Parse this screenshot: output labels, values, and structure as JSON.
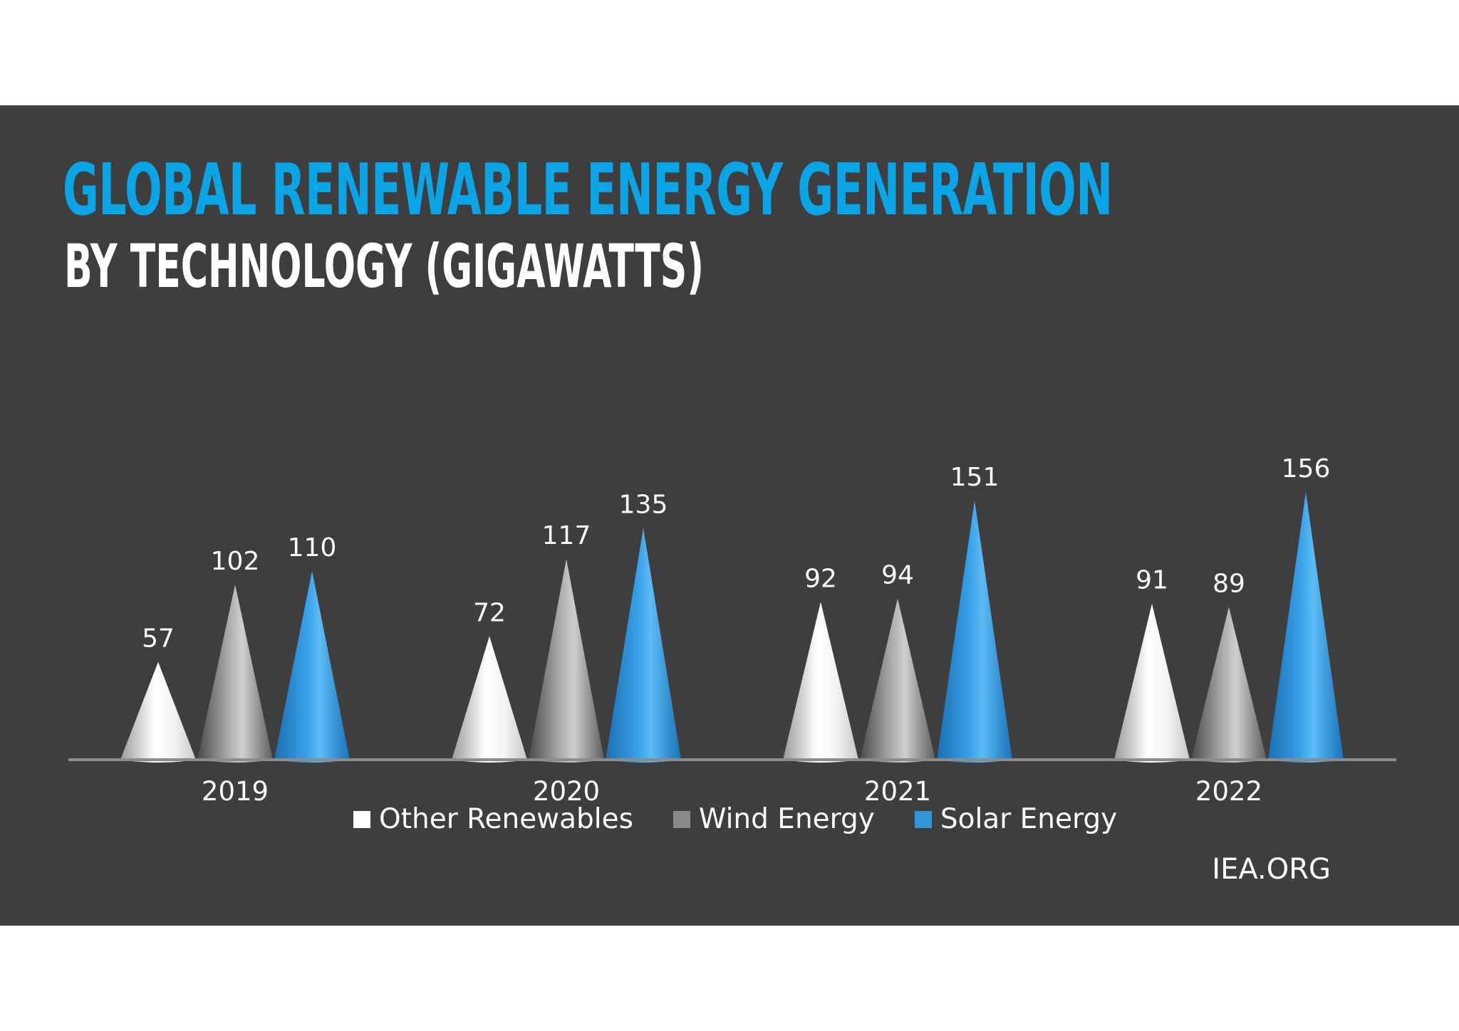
{
  "title": "GLOBAL RENEWABLE ENERGY GENERATION",
  "subtitle": "BY TECHNOLOGY (GIGAWATTS)",
  "source": "IEA.ORG",
  "colors": {
    "background": "#3e3e3f",
    "title": "#09a5e6",
    "other_renewables": "#ffffff",
    "wind_energy": "#8a8a8a",
    "solar_energy": "#2f95dc"
  },
  "chart_data": {
    "type": "bar",
    "bar_shape": "cone",
    "categories": [
      "2019",
      "2020",
      "2021",
      "2022"
    ],
    "series": [
      {
        "name": "Other Renewables",
        "values": [
          57,
          72,
          92,
          91
        ]
      },
      {
        "name": "Wind Energy",
        "values": [
          102,
          117,
          94,
          89
        ]
      },
      {
        "name": "Solar Energy",
        "values": [
          110,
          135,
          151,
          156
        ]
      }
    ],
    "ylim": [
      0,
      160
    ],
    "grid": false,
    "legend_position": "bottom",
    "data_labels": true
  }
}
